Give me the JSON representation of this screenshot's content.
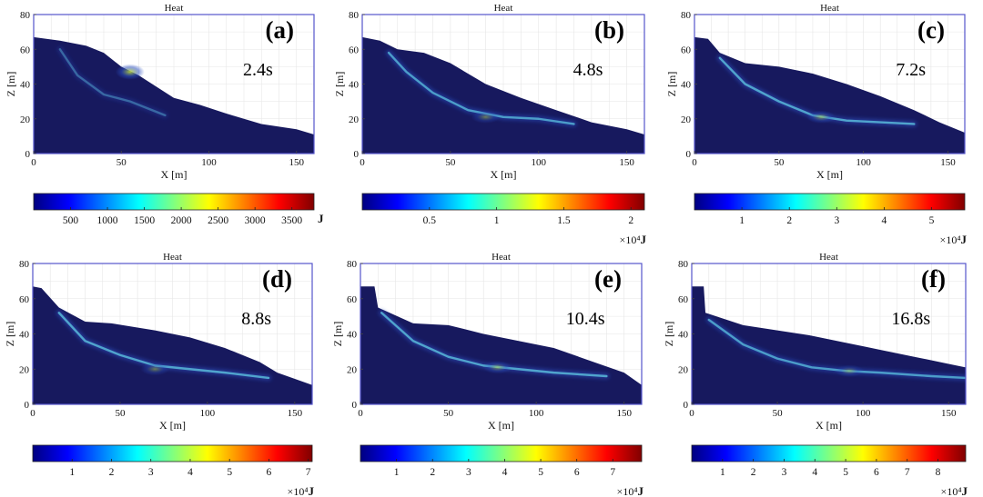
{
  "figure": {
    "colormap": [
      "#000080",
      "#0000ff",
      "#0080ff",
      "#00ffff",
      "#80ff80",
      "#ffff00",
      "#ff8000",
      "#ff0000",
      "#800000"
    ],
    "body_color": "#17195e",
    "heat_color_low": "#2a4fc0",
    "heat_color_high": "#c4e23a"
  },
  "chart_data": [
    {
      "type": "heatmap",
      "panel": "(a)",
      "title": "Heat",
      "time": "2.4s",
      "xlabel": "X [m]",
      "ylabel": "Z [m]",
      "xlim": [
        0,
        160
      ],
      "ylim": [
        0,
        80
      ],
      "xticks": [
        "0",
        "50",
        "100",
        "150"
      ],
      "yticks": [
        "0",
        "20",
        "40",
        "60",
        "80"
      ],
      "grid": true,
      "colorbar": {
        "ticks": [
          500,
          1000,
          1500,
          2000,
          2500,
          3000,
          3500
        ],
        "tick_labels": [
          "500",
          "1000",
          "1500",
          "2000",
          "2500",
          "3000",
          "3500"
        ],
        "min": 0,
        "max": 3800,
        "unit": "J",
        "multiplier": ""
      },
      "surface": [
        [
          0,
          67
        ],
        [
          15,
          65
        ],
        [
          30,
          62
        ],
        [
          40,
          58
        ],
        [
          50,
          50
        ],
        [
          60,
          45
        ],
        [
          80,
          32
        ],
        [
          95,
          28
        ],
        [
          110,
          23
        ],
        [
          130,
          17
        ],
        [
          150,
          14
        ],
        [
          160,
          11
        ]
      ],
      "shear_band": [
        [
          15,
          60
        ],
        [
          25,
          45
        ],
        [
          40,
          34
        ],
        [
          55,
          30
        ],
        [
          75,
          22
        ]
      ],
      "shear_intensity": 0.45,
      "hotspot": [
        [
          55,
          47
        ],
        [
          0.9
        ]
      ]
    },
    {
      "type": "heatmap",
      "panel": "(b)",
      "title": "Heat",
      "time": "4.8s",
      "xlabel": "X [m]",
      "ylabel": "Z [m]",
      "xlim": [
        0,
        160
      ],
      "ylim": [
        0,
        80
      ],
      "xticks": [
        "0",
        "50",
        "100",
        "150"
      ],
      "yticks": [
        "0",
        "20",
        "40",
        "60",
        "80"
      ],
      "grid": true,
      "colorbar": {
        "ticks": [
          0.5,
          1,
          1.5,
          2
        ],
        "tick_labels": [
          "0.5",
          "1",
          "1.5",
          "2"
        ],
        "min": 0,
        "max": 2.1,
        "unit": "J",
        "multiplier": "×10⁴"
      },
      "surface": [
        [
          0,
          67
        ],
        [
          10,
          65
        ],
        [
          20,
          60
        ],
        [
          35,
          58
        ],
        [
          50,
          52
        ],
        [
          70,
          40
        ],
        [
          90,
          32
        ],
        [
          110,
          25
        ],
        [
          130,
          18
        ],
        [
          150,
          14
        ],
        [
          160,
          11
        ]
      ],
      "shear_band": [
        [
          15,
          58
        ],
        [
          25,
          47
        ],
        [
          40,
          35
        ],
        [
          60,
          25
        ],
        [
          80,
          21
        ],
        [
          100,
          20
        ],
        [
          120,
          17
        ]
      ],
      "shear_intensity": 0.8,
      "hotspot": [
        [
          70,
          21
        ],
        [
          0.5
        ]
      ]
    },
    {
      "type": "heatmap",
      "panel": "(c)",
      "title": "Heat",
      "time": "7.2s",
      "xlabel": "X [m]",
      "ylabel": "Z [m]",
      "xlim": [
        0,
        160
      ],
      "ylim": [
        0,
        80
      ],
      "xticks": [
        "0",
        "50",
        "100",
        "150"
      ],
      "yticks": [
        "0",
        "20",
        "40",
        "60",
        "80"
      ],
      "grid": true,
      "colorbar": {
        "ticks": [
          1,
          2,
          3,
          4,
          5
        ],
        "tick_labels": [
          "1",
          "2",
          "3",
          "4",
          "5"
        ],
        "min": 0,
        "max": 5.7,
        "unit": "J",
        "multiplier": "×10⁴"
      },
      "surface": [
        [
          0,
          67
        ],
        [
          8,
          66
        ],
        [
          15,
          58
        ],
        [
          30,
          52
        ],
        [
          50,
          50
        ],
        [
          70,
          46
        ],
        [
          90,
          40
        ],
        [
          110,
          33
        ],
        [
          130,
          25
        ],
        [
          145,
          18
        ],
        [
          160,
          12
        ]
      ],
      "shear_band": [
        [
          15,
          55
        ],
        [
          30,
          40
        ],
        [
          50,
          30
        ],
        [
          70,
          22
        ],
        [
          90,
          19
        ],
        [
          110,
          18
        ],
        [
          130,
          17
        ]
      ],
      "shear_intensity": 0.85,
      "hotspot": [
        [
          75,
          21
        ],
        [
          0.55
        ]
      ]
    },
    {
      "type": "heatmap",
      "panel": "(d)",
      "title": "Heat",
      "time": "8.8s",
      "xlabel": "X [m]",
      "ylabel": "Z [m]",
      "xlim": [
        0,
        160
      ],
      "ylim": [
        0,
        80
      ],
      "xticks": [
        "0",
        "50",
        "100",
        "150"
      ],
      "yticks": [
        "0",
        "20",
        "40",
        "60",
        "80"
      ],
      "grid": true,
      "colorbar": {
        "ticks": [
          1,
          2,
          3,
          4,
          5,
          6,
          7
        ],
        "tick_labels": [
          "1",
          "2",
          "3",
          "4",
          "5",
          "6",
          "7"
        ],
        "min": 0,
        "max": 7.1,
        "unit": "J",
        "multiplier": "×10⁴"
      },
      "surface": [
        [
          0,
          67
        ],
        [
          5,
          66
        ],
        [
          15,
          55
        ],
        [
          30,
          47
        ],
        [
          45,
          46
        ],
        [
          70,
          42
        ],
        [
          90,
          38
        ],
        [
          110,
          32
        ],
        [
          130,
          24
        ],
        [
          140,
          18
        ],
        [
          160,
          11
        ]
      ],
      "shear_band": [
        [
          15,
          52
        ],
        [
          30,
          36
        ],
        [
          50,
          28
        ],
        [
          70,
          22
        ],
        [
          90,
          20
        ],
        [
          110,
          18
        ],
        [
          135,
          15
        ]
      ],
      "shear_intensity": 0.85,
      "hotspot": [
        [
          70,
          20
        ],
        [
          0.5
        ]
      ]
    },
    {
      "type": "heatmap",
      "panel": "(e)",
      "title": "Heat",
      "time": "10.4s",
      "xlabel": "X [m]",
      "ylabel": "Z [m]",
      "xlim": [
        0,
        160
      ],
      "ylim": [
        0,
        80
      ],
      "xticks": [
        "0",
        "50",
        "100",
        "150"
      ],
      "yticks": [
        "0",
        "20",
        "40",
        "60",
        "80"
      ],
      "grid": true,
      "colorbar": {
        "ticks": [
          1,
          2,
          3,
          4,
          5,
          6,
          7
        ],
        "tick_labels": [
          "1",
          "2",
          "3",
          "4",
          "5",
          "6",
          "7"
        ],
        "min": 0,
        "max": 7.8,
        "unit": "J",
        "multiplier": "×10⁴"
      },
      "surface": [
        [
          0,
          67
        ],
        [
          8,
          67
        ],
        [
          10,
          55
        ],
        [
          30,
          46
        ],
        [
          50,
          45
        ],
        [
          70,
          40
        ],
        [
          90,
          36
        ],
        [
          110,
          32
        ],
        [
          130,
          25
        ],
        [
          150,
          18
        ],
        [
          160,
          11
        ]
      ],
      "shear_band": [
        [
          12,
          52
        ],
        [
          30,
          36
        ],
        [
          50,
          27
        ],
        [
          70,
          22
        ],
        [
          90,
          20
        ],
        [
          110,
          18
        ],
        [
          140,
          16
        ]
      ],
      "shear_intensity": 0.85,
      "hotspot": [
        [
          78,
          21
        ],
        [
          0.55
        ]
      ]
    },
    {
      "type": "heatmap",
      "panel": "(f)",
      "title": "Heat",
      "time": "16.8s",
      "xlabel": "X [m]",
      "ylabel": "Z [m]",
      "xlim": [
        0,
        160
      ],
      "ylim": [
        0,
        80
      ],
      "xticks": [
        "0",
        "50",
        "100",
        "150"
      ],
      "yticks": [
        "0",
        "20",
        "40",
        "60",
        "80"
      ],
      "grid": true,
      "colorbar": {
        "ticks": [
          1,
          2,
          3,
          4,
          5,
          6,
          7,
          8
        ],
        "tick_labels": [
          "1",
          "2",
          "3",
          "4",
          "5",
          "6",
          "7",
          "8"
        ],
        "min": 0,
        "max": 8.9,
        "unit": "J",
        "multiplier": "×10⁴"
      },
      "surface": [
        [
          0,
          67
        ],
        [
          7,
          67
        ],
        [
          8,
          52
        ],
        [
          30,
          45
        ],
        [
          50,
          42
        ],
        [
          70,
          39
        ],
        [
          90,
          35
        ],
        [
          110,
          31
        ],
        [
          130,
          27
        ],
        [
          150,
          23
        ],
        [
          160,
          21
        ]
      ],
      "shear_band": [
        [
          10,
          48
        ],
        [
          30,
          34
        ],
        [
          50,
          26
        ],
        [
          70,
          21
        ],
        [
          90,
          19
        ],
        [
          110,
          18
        ],
        [
          140,
          16
        ],
        [
          160,
          15
        ]
      ],
      "shear_intensity": 0.8,
      "hotspot": [
        [
          92,
          19
        ],
        [
          0.45
        ]
      ]
    }
  ]
}
